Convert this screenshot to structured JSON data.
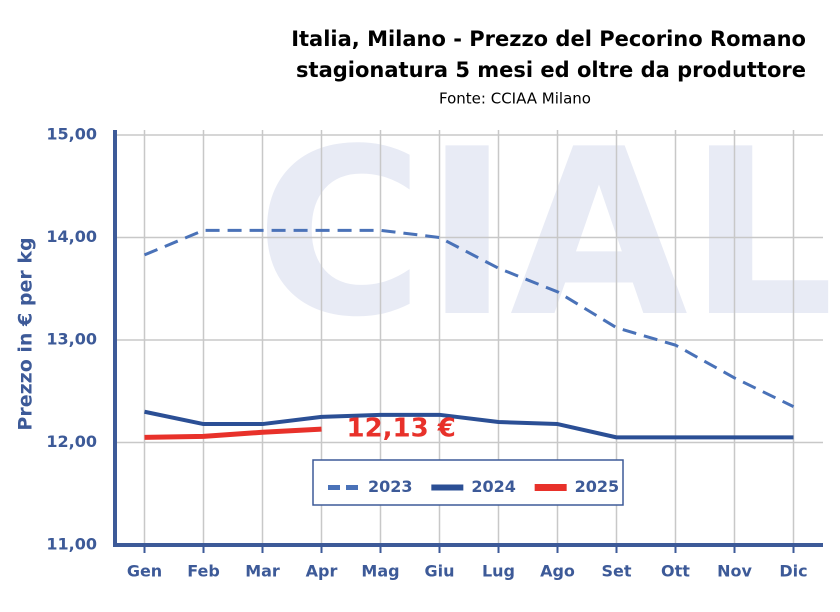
{
  "chart_data": {
    "type": "line",
    "title": [
      "Italia, Milano - Prezzo del Pecorino Romano",
      "stagionatura 5 mesi ed oltre da produttore"
    ],
    "subtitle": "Fonte: CCIAA Milano",
    "watermark": "CIAL",
    "y_label": "Prezzo in € per kg",
    "categories": [
      "Gen",
      "Feb",
      "Mar",
      "Apr",
      "Mag",
      "Giu",
      "Lug",
      "Ago",
      "Set",
      "Ott",
      "Nov",
      "Dic"
    ],
    "series": [
      {
        "name": "2023",
        "color": "#4a72b8",
        "dashed": true,
        "values": [
          13.83,
          14.07,
          14.07,
          14.07,
          14.07,
          14.0,
          13.7,
          13.47,
          13.12,
          12.95,
          12.63,
          12.35
        ]
      },
      {
        "name": "2024",
        "color": "#2b4f95",
        "dashed": false,
        "values": [
          12.3,
          12.18,
          12.18,
          12.25,
          12.27,
          12.27,
          12.2,
          12.18,
          12.05,
          12.05,
          12.05,
          12.05
        ]
      },
      {
        "name": "2025",
        "color": "#e8312a",
        "dashed": false,
        "values": [
          12.05,
          12.06,
          12.1,
          12.13,
          null,
          null,
          null,
          null,
          null,
          null,
          null,
          null
        ],
        "value_labels": [
          null,
          null,
          null,
          "12,13 €",
          null,
          null,
          null,
          null,
          null,
          null,
          null,
          null
        ]
      }
    ],
    "ylim": [
      11,
      15
    ],
    "yticks": [
      {
        "value": 11,
        "label": "11,00"
      },
      {
        "value": 12,
        "label": "12,00"
      },
      {
        "value": 13,
        "label": "13,00"
      },
      {
        "value": 14,
        "label": "14,00"
      },
      {
        "value": 15,
        "label": "15,00"
      }
    ],
    "grid": true,
    "legend": "bottom-center"
  }
}
